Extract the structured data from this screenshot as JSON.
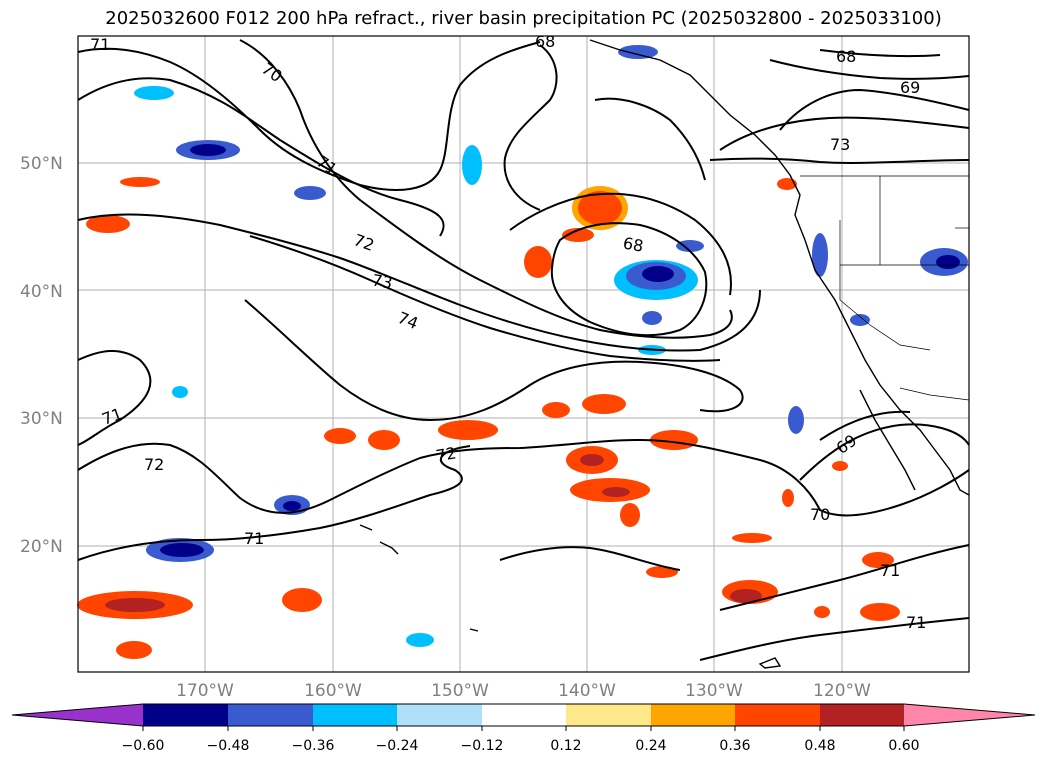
{
  "title": "2025032600 F012 200 hPa refract., river basin precipitation PC (2025032800 - 2025033100)",
  "map": {
    "lat_labels": [
      "50°N",
      "40°N",
      "30°N",
      "20°N"
    ],
    "lon_labels": [
      "170°W",
      "160°W",
      "150°W",
      "140°W",
      "130°W",
      "120°W"
    ],
    "contour_labels": [
      "71",
      "70",
      "68",
      "68",
      "69",
      "71",
      "72",
      "73",
      "74",
      "73",
      "68",
      "71",
      "72",
      "72",
      "69",
      "70",
      "71",
      "71",
      "71"
    ]
  },
  "colorbar": {
    "labels": [
      "−0.60",
      "−0.48",
      "−0.36",
      "−0.24",
      "−0.12",
      "0.12",
      "0.24",
      "0.36",
      "0.48",
      "0.60"
    ],
    "colors": [
      "#9932cc",
      "#00008b",
      "#3a5bd0",
      "#00bfff",
      "#b0e0f8",
      "#ffffff",
      "#ffe88a",
      "#ffa500",
      "#ff4500",
      "#b22222",
      "#ff85aa"
    ]
  }
}
